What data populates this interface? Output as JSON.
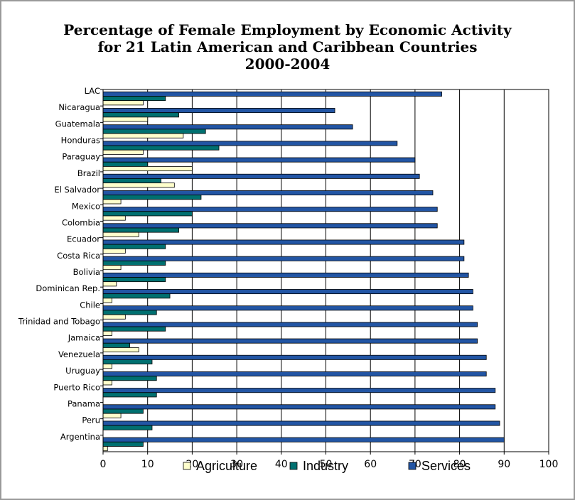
{
  "chart_data": {
    "type": "bar",
    "orientation": "horizontal",
    "title_lines": [
      "Percentage of Female Employment by Economic Activity",
      "for 21 Latin American and Caribbean Countries",
      "2000-2004"
    ],
    "categories": [
      "LAC",
      "Nicaragua",
      "Guatemala",
      "Honduras",
      "Paraguay",
      "Brazil",
      "El Salvador",
      "Mexico",
      "Colombia",
      "Ecuador",
      "Costa Rica",
      "Bolivia",
      "Dominican Rep.",
      "Chile",
      "Trinidad and Tobago",
      "Jamaica",
      "Venezuela",
      "Uruguay",
      "Puerto Rico",
      "Panama",
      "Peru",
      "Argentina"
    ],
    "series": [
      {
        "name": "Agriculture",
        "color": "#ffffcc",
        "values": [
          9,
          10,
          18,
          9,
          20,
          16,
          4,
          5,
          8,
          5,
          4,
          3,
          2,
          5,
          2,
          8,
          2,
          2,
          0,
          4,
          0,
          1
        ]
      },
      {
        "name": "Industry",
        "color": "#007070",
        "values": [
          14,
          17,
          23,
          26,
          10,
          13,
          22,
          20,
          17,
          14,
          14,
          14,
          15,
          12,
          14,
          6,
          11,
          12,
          12,
          9,
          11,
          9
        ]
      },
      {
        "name": "Services",
        "color": "#2255a4",
        "values": [
          76,
          52,
          56,
          66,
          70,
          71,
          74,
          75,
          75,
          81,
          81,
          82,
          83,
          83,
          84,
          84,
          86,
          86,
          88,
          88,
          89,
          90
        ]
      }
    ],
    "xlim": [
      0,
      100
    ],
    "xticks": [
      "0",
      "10",
      "20",
      "30",
      "40",
      "50",
      "60",
      "70",
      "80",
      "90",
      "100"
    ],
    "grid": "vertical",
    "legend": "bottom"
  }
}
